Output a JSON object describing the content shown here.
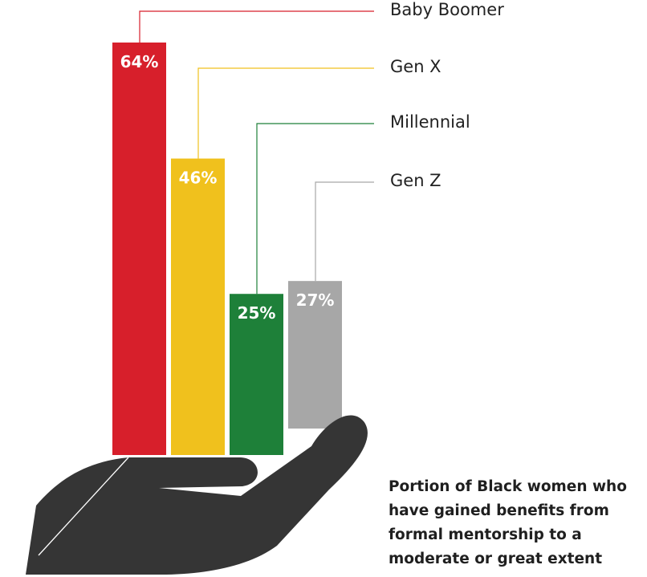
{
  "chart_data": {
    "type": "bar",
    "categories": [
      "Baby Boomer",
      "Gen X",
      "Millennial",
      "Gen Z"
    ],
    "values": [
      64,
      46,
      25,
      27
    ],
    "value_labels": [
      "64%",
      "46%",
      "25%",
      "27%"
    ],
    "unit": "%",
    "colors": [
      "#d71f2b",
      "#f0c11d",
      "#1e8039",
      "#a7a7a7"
    ],
    "legend_position": "right",
    "grid": false,
    "ylim": [
      0,
      100
    ]
  },
  "caption": "Portion of Black women who have gained benefits from formal mentorship to a moderate or great extent",
  "illustration": {
    "icon": "hand-icon",
    "color": "#353535"
  }
}
